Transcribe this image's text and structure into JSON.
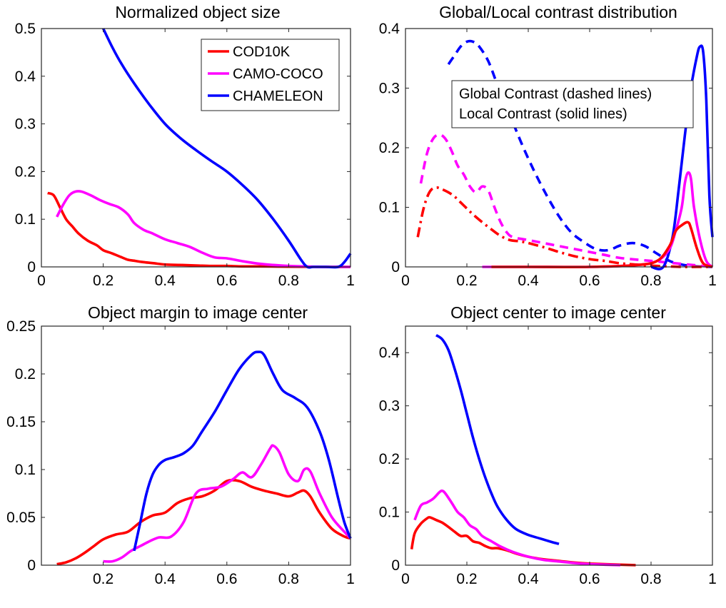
{
  "colors": {
    "COD10K": "#ff0000",
    "CAMO-COCO": "#ff00ff",
    "CHAMELEON": "#0000ff"
  },
  "chart_data": [
    {
      "type": "line",
      "title": "Normalized object size",
      "xlim": [
        0,
        1
      ],
      "ylim": [
        0,
        0.5
      ],
      "xticks": [
        0,
        0.2,
        0.4,
        0.6,
        0.8,
        1
      ],
      "xtick_labels": [
        "0",
        "0.2",
        "0.4",
        "0.6",
        "0.8",
        "1"
      ],
      "yticks": [
        0,
        0.1,
        0.2,
        0.3,
        0.4,
        0.5
      ],
      "ytick_labels": [
        "0",
        "0.1",
        "0.2",
        "0.3",
        "0.4",
        "0.5"
      ],
      "grid": false,
      "legend": {
        "placement": "top-right",
        "entries": [
          {
            "label": "COD10K",
            "color": "#ff0000",
            "style": "solid"
          },
          {
            "label": "CAMO-COCO",
            "color": "#ff00ff",
            "style": "solid"
          },
          {
            "label": "CHAMELEON",
            "color": "#0000ff",
            "style": "solid"
          }
        ]
      },
      "series": [
        {
          "name": "COD10K",
          "color": "#ff0000",
          "style": "solid",
          "x": [
            0.02,
            0.04,
            0.06,
            0.08,
            0.1,
            0.12,
            0.15,
            0.18,
            0.2,
            0.23,
            0.26,
            0.28,
            0.3,
            0.33,
            0.36,
            0.4,
            0.45,
            0.5,
            0.55,
            0.6,
            0.65,
            0.7,
            0.8,
            0.9,
            1.0
          ],
          "y": [
            0.155,
            0.15,
            0.125,
            0.1,
            0.085,
            0.07,
            0.055,
            0.045,
            0.035,
            0.028,
            0.02,
            0.015,
            0.013,
            0.01,
            0.008,
            0.005,
            0.004,
            0.003,
            0.002,
            0.002,
            0.001,
            0.001,
            0.0005,
            0.0,
            0.0
          ]
        },
        {
          "name": "CAMO-COCO",
          "color": "#ff00ff",
          "style": "solid",
          "x": [
            0.05,
            0.07,
            0.09,
            0.11,
            0.13,
            0.16,
            0.19,
            0.22,
            0.25,
            0.28,
            0.3,
            0.33,
            0.36,
            0.4,
            0.44,
            0.48,
            0.52,
            0.56,
            0.6,
            0.65,
            0.7,
            0.75,
            0.8,
            0.85,
            0.9,
            0.95,
            1.0
          ],
          "y": [
            0.105,
            0.13,
            0.15,
            0.158,
            0.158,
            0.15,
            0.14,
            0.132,
            0.125,
            0.11,
            0.092,
            0.078,
            0.07,
            0.058,
            0.05,
            0.042,
            0.03,
            0.02,
            0.018,
            0.012,
            0.007,
            0.004,
            0.002,
            0.001,
            0.0,
            0.0,
            0.0
          ]
        },
        {
          "name": "CHAMELEON",
          "color": "#0000ff",
          "style": "solid",
          "x": [
            0.2,
            0.23,
            0.26,
            0.3,
            0.35,
            0.4,
            0.45,
            0.5,
            0.55,
            0.6,
            0.65,
            0.7,
            0.75,
            0.8,
            0.84,
            0.86,
            0.88,
            0.92,
            0.96,
            0.98,
            1.0
          ],
          "y": [
            0.5,
            0.46,
            0.425,
            0.385,
            0.34,
            0.3,
            0.27,
            0.245,
            0.222,
            0.2,
            0.172,
            0.14,
            0.1,
            0.055,
            0.015,
            0.0,
            0.0,
            0.0,
            0.0,
            0.01,
            0.028
          ]
        }
      ]
    },
    {
      "type": "line",
      "title": "Global/Local contrast distribution",
      "xlim": [
        0,
        1
      ],
      "ylim": [
        0,
        0.4
      ],
      "xticks": [
        0,
        0.2,
        0.4,
        0.6,
        0.8,
        1
      ],
      "xtick_labels": [
        "0",
        "0.2",
        "0.4",
        "0.6",
        "0.8",
        "1"
      ],
      "yticks": [
        0,
        0.1,
        0.2,
        0.3,
        0.4
      ],
      "ytick_labels": [
        "0",
        "0.1",
        "0.2",
        "0.3",
        "0.4"
      ],
      "grid": false,
      "annotation": [
        "Global Contrast (dashed lines)",
        "Local Contrast (solid lines)"
      ],
      "series": [
        {
          "name": "",
          "color": "#0000ff",
          "style": "dashed",
          "x": [
            0.14,
            0.16,
            0.18,
            0.2,
            0.22,
            0.24,
            0.27,
            0.3,
            0.34,
            0.38,
            0.42,
            0.46,
            0.5,
            0.54,
            0.58,
            0.62,
            0.66,
            0.7,
            0.74,
            0.78,
            0.82,
            0.86,
            0.9,
            0.94,
            1.0
          ],
          "y": [
            0.34,
            0.355,
            0.37,
            0.378,
            0.378,
            0.37,
            0.345,
            0.305,
            0.255,
            0.205,
            0.16,
            0.12,
            0.085,
            0.058,
            0.042,
            0.03,
            0.028,
            0.036,
            0.04,
            0.035,
            0.022,
            0.01,
            0.004,
            0.001,
            0.0
          ]
        },
        {
          "name": "",
          "color": "#ff00ff",
          "style": "dashed",
          "x": [
            0.05,
            0.07,
            0.09,
            0.11,
            0.13,
            0.15,
            0.17,
            0.19,
            0.21,
            0.23,
            0.25,
            0.27,
            0.29,
            0.31,
            0.33,
            0.35,
            0.4,
            0.45,
            0.5,
            0.55,
            0.6,
            0.65,
            0.7,
            0.8,
            0.9,
            1.0
          ],
          "y": [
            0.14,
            0.19,
            0.215,
            0.222,
            0.215,
            0.195,
            0.17,
            0.155,
            0.135,
            0.125,
            0.135,
            0.128,
            0.1,
            0.075,
            0.058,
            0.05,
            0.045,
            0.04,
            0.035,
            0.03,
            0.025,
            0.02,
            0.015,
            0.01,
            0.005,
            0.0
          ]
        },
        {
          "name": "",
          "color": "#ff0000",
          "style": "dashdot",
          "x": [
            0.04,
            0.06,
            0.08,
            0.1,
            0.12,
            0.14,
            0.16,
            0.18,
            0.2,
            0.22,
            0.25,
            0.28,
            0.31,
            0.34,
            0.37,
            0.4,
            0.45,
            0.5,
            0.55,
            0.6,
            0.65,
            0.7,
            0.75,
            0.8,
            0.85,
            0.9,
            0.95,
            1.0
          ],
          "y": [
            0.05,
            0.1,
            0.127,
            0.133,
            0.13,
            0.125,
            0.118,
            0.108,
            0.098,
            0.088,
            0.075,
            0.063,
            0.052,
            0.045,
            0.043,
            0.04,
            0.033,
            0.025,
            0.018,
            0.013,
            0.01,
            0.006,
            0.004,
            0.002,
            0.001,
            0.0,
            0.0,
            0.0
          ]
        },
        {
          "name": "",
          "color": "#0000ff",
          "style": "solid",
          "x": [
            0.8,
            0.84,
            0.87,
            0.89,
            0.91,
            0.93,
            0.95,
            0.96,
            0.97,
            0.98,
            0.99,
            1.0
          ],
          "y": [
            0.0,
            0.0,
            0.05,
            0.13,
            0.22,
            0.3,
            0.355,
            0.37,
            0.36,
            0.28,
            0.12,
            0.05
          ]
        },
        {
          "name": "",
          "color": "#ff00ff",
          "style": "solid",
          "x": [
            0.25,
            0.4,
            0.6,
            0.75,
            0.82,
            0.86,
            0.88,
            0.9,
            0.91,
            0.92,
            0.93,
            0.94,
            0.96,
            0.98,
            1.0
          ],
          "y": [
            0.0,
            0.0,
            0.0,
            0.003,
            0.01,
            0.03,
            0.06,
            0.1,
            0.14,
            0.158,
            0.148,
            0.1,
            0.045,
            0.01,
            0.0
          ]
        },
        {
          "name": "",
          "color": "#ff0000",
          "style": "solid",
          "x": [
            0.28,
            0.4,
            0.6,
            0.75,
            0.82,
            0.86,
            0.88,
            0.9,
            0.92,
            0.93,
            0.95,
            0.97,
            1.0
          ],
          "y": [
            0.0,
            0.0,
            0.0,
            0.003,
            0.01,
            0.035,
            0.06,
            0.07,
            0.075,
            0.065,
            0.03,
            0.006,
            0.0
          ]
        }
      ]
    },
    {
      "type": "line",
      "title": "Object margin to image center",
      "xlim": [
        0,
        1
      ],
      "ylim": [
        0,
        0.25
      ],
      "xticks": [
        0.2,
        0.4,
        0.6,
        0.8,
        1
      ],
      "xtick_labels": [
        "0.2",
        "0.4",
        "0.6",
        "0.8",
        "1"
      ],
      "yticks": [
        0,
        0.05,
        0.1,
        0.15,
        0.2,
        0.25
      ],
      "ytick_labels": [
        "0",
        "0.05",
        "0.1",
        "0.15",
        "0.2",
        "0.25"
      ],
      "grid": false,
      "series": [
        {
          "name": "COD10K",
          "color": "#ff0000",
          "style": "solid",
          "x": [
            0.05,
            0.08,
            0.11,
            0.14,
            0.17,
            0.2,
            0.24,
            0.28,
            0.32,
            0.36,
            0.4,
            0.44,
            0.48,
            0.52,
            0.56,
            0.6,
            0.64,
            0.68,
            0.72,
            0.76,
            0.8,
            0.83,
            0.85,
            0.87,
            0.9,
            0.94,
            0.98,
            1.0
          ],
          "y": [
            0.001,
            0.003,
            0.007,
            0.013,
            0.02,
            0.027,
            0.032,
            0.035,
            0.045,
            0.052,
            0.055,
            0.065,
            0.07,
            0.072,
            0.078,
            0.088,
            0.088,
            0.082,
            0.078,
            0.075,
            0.072,
            0.076,
            0.078,
            0.072,
            0.055,
            0.038,
            0.03,
            0.028
          ]
        },
        {
          "name": "CAMO-COCO",
          "color": "#ff00ff",
          "style": "solid",
          "x": [
            0.2,
            0.23,
            0.26,
            0.29,
            0.32,
            0.35,
            0.38,
            0.42,
            0.46,
            0.5,
            0.54,
            0.58,
            0.62,
            0.65,
            0.68,
            0.71,
            0.74,
            0.75,
            0.77,
            0.8,
            0.83,
            0.85,
            0.87,
            0.9,
            0.94,
            0.98,
            1.0
          ],
          "y": [
            0.004,
            0.004,
            0.008,
            0.015,
            0.02,
            0.025,
            0.029,
            0.03,
            0.045,
            0.075,
            0.08,
            0.082,
            0.09,
            0.097,
            0.092,
            0.105,
            0.122,
            0.125,
            0.118,
            0.095,
            0.088,
            0.1,
            0.098,
            0.075,
            0.05,
            0.035,
            0.028
          ]
        },
        {
          "name": "CHAMELEON",
          "color": "#0000ff",
          "style": "solid",
          "x": [
            0.3,
            0.32,
            0.34,
            0.36,
            0.38,
            0.4,
            0.43,
            0.46,
            0.49,
            0.52,
            0.56,
            0.6,
            0.64,
            0.68,
            0.7,
            0.72,
            0.75,
            0.78,
            0.82,
            0.86,
            0.9,
            0.93,
            0.96,
            0.98,
            1.0
          ],
          "y": [
            0.015,
            0.045,
            0.075,
            0.095,
            0.105,
            0.11,
            0.113,
            0.117,
            0.125,
            0.14,
            0.16,
            0.183,
            0.205,
            0.22,
            0.223,
            0.22,
            0.2,
            0.183,
            0.175,
            0.165,
            0.14,
            0.11,
            0.07,
            0.045,
            0.028
          ]
        }
      ]
    },
    {
      "type": "line",
      "title": "Object center to image center",
      "xlim": [
        0,
        1
      ],
      "ylim": [
        0,
        0.45
      ],
      "xticks": [
        0,
        0.2,
        0.4,
        0.6,
        0.8,
        1
      ],
      "xtick_labels": [
        "0",
        "0.2",
        "0.4",
        "0.6",
        "0.8",
        "1"
      ],
      "yticks": [
        0,
        0.1,
        0.2,
        0.3,
        0.4
      ],
      "ytick_labels": [
        "0",
        "0.1",
        "0.2",
        "0.3",
        "0.4"
      ],
      "grid": false,
      "series": [
        {
          "name": "COD10K",
          "color": "#ff0000",
          "style": "solid",
          "x": [
            0.02,
            0.03,
            0.05,
            0.07,
            0.08,
            0.1,
            0.12,
            0.14,
            0.16,
            0.18,
            0.2,
            0.22,
            0.24,
            0.26,
            0.28,
            0.3,
            0.33,
            0.36,
            0.4,
            0.45,
            0.5,
            0.55,
            0.6,
            0.65,
            0.7,
            0.75
          ],
          "y": [
            0.03,
            0.06,
            0.078,
            0.088,
            0.09,
            0.085,
            0.08,
            0.072,
            0.063,
            0.055,
            0.055,
            0.045,
            0.042,
            0.036,
            0.032,
            0.032,
            0.028,
            0.022,
            0.016,
            0.011,
            0.008,
            0.005,
            0.003,
            0.002,
            0.001,
            0.0
          ]
        },
        {
          "name": "CAMO-COCO",
          "color": "#ff00ff",
          "style": "solid",
          "x": [
            0.03,
            0.05,
            0.07,
            0.09,
            0.11,
            0.12,
            0.13,
            0.15,
            0.17,
            0.19,
            0.21,
            0.23,
            0.25,
            0.28,
            0.31,
            0.35,
            0.4,
            0.45,
            0.5,
            0.55,
            0.6,
            0.65,
            0.7
          ],
          "y": [
            0.085,
            0.112,
            0.118,
            0.125,
            0.137,
            0.14,
            0.135,
            0.118,
            0.1,
            0.09,
            0.075,
            0.068,
            0.055,
            0.045,
            0.035,
            0.025,
            0.016,
            0.01,
            0.007,
            0.004,
            0.002,
            0.001,
            0.0
          ]
        },
        {
          "name": "CHAMELEON",
          "color": "#0000ff",
          "style": "solid",
          "x": [
            0.1,
            0.12,
            0.14,
            0.16,
            0.18,
            0.2,
            0.22,
            0.24,
            0.26,
            0.28,
            0.3,
            0.33,
            0.36,
            0.4,
            0.44,
            0.48,
            0.5
          ],
          "y": [
            0.433,
            0.425,
            0.405,
            0.37,
            0.33,
            0.285,
            0.24,
            0.2,
            0.165,
            0.135,
            0.11,
            0.085,
            0.068,
            0.057,
            0.05,
            0.043,
            0.04
          ]
        }
      ]
    }
  ]
}
